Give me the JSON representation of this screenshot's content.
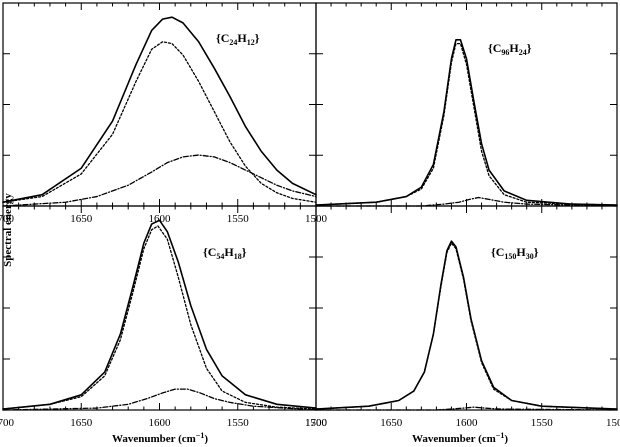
{
  "figure": {
    "ylabel": "Spectral energy",
    "xlabel_main": "Wavenumber (cm",
    "xlabel_sup": "−1",
    "xlabel_close": ")"
  },
  "chart_data": [
    {
      "type": "line",
      "label": {
        "open": "{C",
        "n1": "24",
        "mid": "H",
        "n2": "12",
        "close": "}"
      },
      "xlim": [
        1700,
        1500
      ],
      "x_ticks": [
        "1700",
        "1650",
        "1600",
        "1550",
        "1500"
      ],
      "series": [
        {
          "style": "solid",
          "points": [
            [
              1700,
              0.02
            ],
            [
              1675,
              0.06
            ],
            [
              1650,
              0.2
            ],
            [
              1630,
              0.45
            ],
            [
              1615,
              0.75
            ],
            [
              1605,
              0.93
            ],
            [
              1598,
              0.99
            ],
            [
              1592,
              1.0
            ],
            [
              1585,
              0.97
            ],
            [
              1575,
              0.87
            ],
            [
              1565,
              0.73
            ],
            [
              1555,
              0.58
            ],
            [
              1545,
              0.42
            ],
            [
              1535,
              0.29
            ],
            [
              1525,
              0.19
            ],
            [
              1515,
              0.12
            ],
            [
              1500,
              0.06
            ]
          ]
        },
        {
          "style": "dotted",
          "points": [
            [
              1700,
              0.02
            ],
            [
              1675,
              0.05
            ],
            [
              1650,
              0.17
            ],
            [
              1630,
              0.38
            ],
            [
              1615,
              0.66
            ],
            [
              1605,
              0.83
            ],
            [
              1598,
              0.87
            ],
            [
              1592,
              0.86
            ],
            [
              1585,
              0.8
            ],
            [
              1575,
              0.66
            ],
            [
              1565,
              0.5
            ],
            [
              1555,
              0.34
            ],
            [
              1545,
              0.21
            ],
            [
              1535,
              0.12
            ],
            [
              1525,
              0.07
            ],
            [
              1515,
              0.04
            ],
            [
              1500,
              0.02
            ]
          ]
        },
        {
          "style": "dash-dot",
          "points": [
            [
              1700,
              0.0
            ],
            [
              1660,
              0.02
            ],
            [
              1640,
              0.05
            ],
            [
              1620,
              0.11
            ],
            [
              1605,
              0.18
            ],
            [
              1595,
              0.23
            ],
            [
              1585,
              0.26
            ],
            [
              1575,
              0.27
            ],
            [
              1565,
              0.26
            ],
            [
              1555,
              0.23
            ],
            [
              1545,
              0.19
            ],
            [
              1535,
              0.15
            ],
            [
              1525,
              0.11
            ],
            [
              1515,
              0.08
            ],
            [
              1500,
              0.05
            ]
          ]
        }
      ]
    },
    {
      "type": "line",
      "label": {
        "open": "{C",
        "n1": "96",
        "mid": "H",
        "n2": "24",
        "close": "}"
      },
      "xlim": [
        1700,
        1500
      ],
      "x_ticks": [
        "1700",
        "1650",
        "1600",
        "1550",
        "1500"
      ],
      "series": [
        {
          "style": "solid",
          "points": [
            [
              1700,
              0.005
            ],
            [
              1660,
              0.02
            ],
            [
              1640,
              0.05
            ],
            [
              1630,
              0.1
            ],
            [
              1622,
              0.22
            ],
            [
              1615,
              0.5
            ],
            [
              1610,
              0.78
            ],
            [
              1607,
              0.88
            ],
            [
              1604,
              0.88
            ],
            [
              1600,
              0.78
            ],
            [
              1595,
              0.55
            ],
            [
              1590,
              0.33
            ],
            [
              1585,
              0.19
            ],
            [
              1575,
              0.08
            ],
            [
              1560,
              0.03
            ],
            [
              1530,
              0.01
            ],
            [
              1500,
              0.005
            ]
          ]
        },
        {
          "style": "dotted",
          "points": [
            [
              1700,
              0.005
            ],
            [
              1660,
              0.02
            ],
            [
              1640,
              0.05
            ],
            [
              1630,
              0.09
            ],
            [
              1622,
              0.2
            ],
            [
              1615,
              0.48
            ],
            [
              1610,
              0.76
            ],
            [
              1607,
              0.86
            ],
            [
              1604,
              0.86
            ],
            [
              1600,
              0.75
            ],
            [
              1595,
              0.52
            ],
            [
              1590,
              0.29
            ],
            [
              1585,
              0.16
            ],
            [
              1575,
              0.06
            ],
            [
              1560,
              0.02
            ],
            [
              1530,
              0.01
            ],
            [
              1500,
              0.005
            ]
          ]
        },
        {
          "style": "dash-dot",
          "points": [
            [
              1700,
              0.0
            ],
            [
              1630,
              0.0
            ],
            [
              1615,
              0.01
            ],
            [
              1605,
              0.02
            ],
            [
              1598,
              0.035
            ],
            [
              1592,
              0.045
            ],
            [
              1585,
              0.035
            ],
            [
              1575,
              0.02
            ],
            [
              1560,
              0.01
            ],
            [
              1500,
              0.0
            ]
          ]
        }
      ]
    },
    {
      "type": "line",
      "label": {
        "open": "{C",
        "n1": "54",
        "mid": "H",
        "n2": "18",
        "close": "}"
      },
      "xlim": [
        1700,
        1500
      ],
      "x_ticks": [
        "1700",
        "1650",
        "1600",
        "1550",
        "1500"
      ],
      "series": [
        {
          "style": "solid",
          "points": [
            [
              1700,
              0.005
            ],
            [
              1670,
              0.03
            ],
            [
              1650,
              0.08
            ],
            [
              1635,
              0.2
            ],
            [
              1625,
              0.4
            ],
            [
              1617,
              0.65
            ],
            [
              1610,
              0.88
            ],
            [
              1605,
              0.98
            ],
            [
              1600,
              1.0
            ],
            [
              1595,
              0.94
            ],
            [
              1588,
              0.78
            ],
            [
              1580,
              0.55
            ],
            [
              1570,
              0.32
            ],
            [
              1560,
              0.18
            ],
            [
              1545,
              0.08
            ],
            [
              1525,
              0.03
            ],
            [
              1500,
              0.01
            ]
          ]
        },
        {
          "style": "dotted",
          "points": [
            [
              1700,
              0.005
            ],
            [
              1670,
              0.03
            ],
            [
              1650,
              0.07
            ],
            [
              1635,
              0.18
            ],
            [
              1625,
              0.37
            ],
            [
              1617,
              0.62
            ],
            [
              1610,
              0.85
            ],
            [
              1605,
              0.95
            ],
            [
              1601,
              0.97
            ],
            [
              1595,
              0.9
            ],
            [
              1588,
              0.7
            ],
            [
              1580,
              0.45
            ],
            [
              1570,
              0.22
            ],
            [
              1560,
              0.1
            ],
            [
              1545,
              0.04
            ],
            [
              1525,
              0.015
            ],
            [
              1500,
              0.005
            ]
          ]
        },
        {
          "style": "dash-dot",
          "points": [
            [
              1700,
              0.0
            ],
            [
              1640,
              0.01
            ],
            [
              1620,
              0.03
            ],
            [
              1608,
              0.06
            ],
            [
              1598,
              0.09
            ],
            [
              1590,
              0.11
            ],
            [
              1582,
              0.11
            ],
            [
              1574,
              0.09
            ],
            [
              1565,
              0.06
            ],
            [
              1555,
              0.04
            ],
            [
              1540,
              0.02
            ],
            [
              1520,
              0.01
            ],
            [
              1500,
              0.0
            ]
          ]
        }
      ]
    },
    {
      "type": "line",
      "label": {
        "open": "{C",
        "n1": "150",
        "mid": "H",
        "n2": "30",
        "close": "}"
      },
      "xlim": [
        1700,
        1500
      ],
      "x_ticks": [
        "1700",
        "1650",
        "1600",
        "1550",
        "1500"
      ],
      "series": [
        {
          "style": "solid",
          "points": [
            [
              1700,
              0.005
            ],
            [
              1665,
              0.02
            ],
            [
              1645,
              0.05
            ],
            [
              1635,
              0.1
            ],
            [
              1628,
              0.2
            ],
            [
              1622,
              0.4
            ],
            [
              1617,
              0.66
            ],
            [
              1613,
              0.84
            ],
            [
              1610,
              0.89
            ],
            [
              1607,
              0.86
            ],
            [
              1602,
              0.7
            ],
            [
              1597,
              0.48
            ],
            [
              1590,
              0.26
            ],
            [
              1582,
              0.12
            ],
            [
              1570,
              0.05
            ],
            [
              1550,
              0.02
            ],
            [
              1500,
              0.005
            ]
          ]
        },
        {
          "style": "dotted",
          "points": [
            [
              1700,
              0.005
            ],
            [
              1665,
              0.02
            ],
            [
              1645,
              0.05
            ],
            [
              1635,
              0.1
            ],
            [
              1628,
              0.2
            ],
            [
              1622,
              0.4
            ],
            [
              1617,
              0.65
            ],
            [
              1613,
              0.83
            ],
            [
              1610,
              0.88
            ],
            [
              1607,
              0.85
            ],
            [
              1602,
              0.69
            ],
            [
              1597,
              0.47
            ],
            [
              1590,
              0.25
            ],
            [
              1582,
              0.11
            ],
            [
              1570,
              0.05
            ],
            [
              1550,
              0.02
            ],
            [
              1500,
              0.005
            ]
          ]
        },
        {
          "style": "dash-dot",
          "points": [
            [
              1700,
              0.0
            ],
            [
              1620,
              0.0
            ],
            [
              1610,
              0.005
            ],
            [
              1602,
              0.01
            ],
            [
              1595,
              0.015
            ],
            [
              1588,
              0.01
            ],
            [
              1578,
              0.005
            ],
            [
              1500,
              0.0
            ]
          ]
        }
      ]
    }
  ]
}
